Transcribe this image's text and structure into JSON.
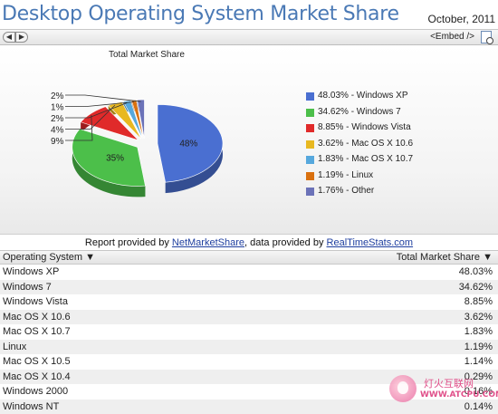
{
  "header": {
    "title": "Desktop Operating System Market Share",
    "date": "October, 2011"
  },
  "toolbar": {
    "prev_glyph": "◀",
    "next_glyph": "▶",
    "embed_label": "<Embed />"
  },
  "chart_data": {
    "type": "pie",
    "title": "Total Market Share",
    "slices": [
      {
        "name": "Windows XP",
        "value": 48.03,
        "color": "#4a6fd1",
        "pie_label": "48%",
        "legend": "48.03% - Windows XP"
      },
      {
        "name": "Windows 7",
        "value": 34.62,
        "color": "#4cbf4a",
        "pie_label": "35%",
        "legend": "34.62% - Windows 7"
      },
      {
        "name": "Windows Vista",
        "value": 8.85,
        "color": "#e02a2a",
        "pie_label": "9%",
        "legend": "8.85% - Windows Vista"
      },
      {
        "name": "Mac OS X 10.6",
        "value": 3.62,
        "color": "#e8b821",
        "pie_label": "4%",
        "legend": "3.62% - Mac OS X 10.6"
      },
      {
        "name": "Mac OS X 10.7",
        "value": 1.83,
        "color": "#56a8dd",
        "pie_label": "2%",
        "legend": "1.83% - Mac OS X 10.7"
      },
      {
        "name": "Linux",
        "value": 1.19,
        "color": "#d9700f",
        "pie_label": "1%",
        "legend": "1.19% - Linux"
      },
      {
        "name": "Other",
        "value": 1.76,
        "color": "#6b72b8",
        "pie_label": "2%",
        "legend": "1.76% - Other"
      }
    ]
  },
  "report": {
    "prefix": "Report provided by ",
    "provider": "NetMarketShare",
    "middle": ", data provided by ",
    "data_source": "RealTimeStats.com"
  },
  "table": {
    "col_os": "Operating System ▼",
    "col_share": "Total Market Share ▼",
    "rows": [
      {
        "os": "Windows XP",
        "share": "48.03%"
      },
      {
        "os": "Windows 7",
        "share": "34.62%"
      },
      {
        "os": "Windows Vista",
        "share": "8.85%"
      },
      {
        "os": "Mac OS X 10.6",
        "share": "3.62%"
      },
      {
        "os": "Mac OS X 10.7",
        "share": "1.83%"
      },
      {
        "os": "Linux",
        "share": "1.19%"
      },
      {
        "os": "Mac OS X 10.5",
        "share": "1.14%"
      },
      {
        "os": "Mac OS X 10.4",
        "share": "0.29%"
      },
      {
        "os": "Windows 2000",
        "share": "0.16%"
      },
      {
        "os": "Windows NT",
        "share": "0.14%"
      }
    ]
  },
  "watermark": {
    "name": "灯火互联网",
    "url": "WWW.ATCPU.COM"
  }
}
